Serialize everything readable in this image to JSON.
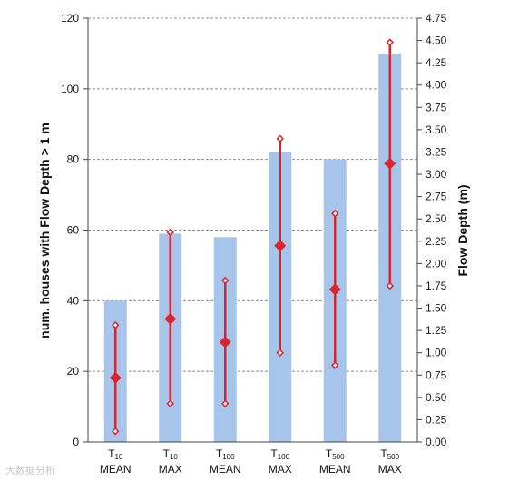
{
  "chart_data": {
    "type": "bar",
    "categories": [
      {
        "main": "T",
        "sub": "10",
        "line2": "MEAN"
      },
      {
        "main": "T",
        "sub": "10",
        "line2": "MAX"
      },
      {
        "main": "T",
        "sub": "100",
        "line2": "MEAN"
      },
      {
        "main": "T",
        "sub": "100",
        "line2": "MAX"
      },
      {
        "main": "T",
        "sub": "500",
        "line2": "MEAN"
      },
      {
        "main": "T",
        "sub": "500",
        "line2": "MAX"
      }
    ],
    "bars": {
      "axis": "left",
      "values": [
        40,
        59,
        58,
        82,
        80,
        110
      ],
      "color": "#a7c5ea"
    },
    "flow_depth": {
      "axis": "right",
      "color": "#d9252b",
      "center": [
        0.72,
        1.38,
        1.12,
        2.2,
        1.71,
        3.12
      ],
      "low": [
        0.12,
        0.43,
        0.43,
        1.0,
        0.86,
        1.75
      ],
      "high": [
        1.31,
        2.35,
        1.81,
        3.4,
        2.56,
        4.48
      ]
    },
    "ylabel_left": "num. houses with Flow Depth > 1 m",
    "ylabel_right": "Flow Depth (m)",
    "ylim_left": [
      0,
      120
    ],
    "yticks_left": [
      "0",
      "20",
      "40",
      "60",
      "80",
      "100",
      "120"
    ],
    "ylim_right": [
      0,
      4.75
    ],
    "yticks_right": [
      "0.00",
      "0.25",
      "0.50",
      "0.75",
      "1.00",
      "1.25",
      "1.50",
      "1.75",
      "2.00",
      "2.25",
      "2.50",
      "2.75",
      "3.00",
      "3.25",
      "3.50",
      "3.75",
      "4.00",
      "4.25",
      "4.50",
      "4.75"
    ],
    "grid": "horizontal dashed at left-axis ticks"
  },
  "watermark": "大数据分析"
}
